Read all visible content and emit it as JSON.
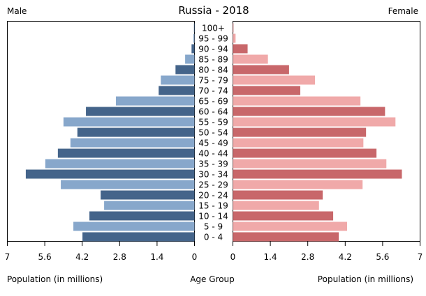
{
  "chart_data": {
    "type": "bar",
    "subtype": "population-pyramid",
    "title": "Russia - 2018",
    "left_label": "Male",
    "right_label": "Female",
    "xlabel_left": "Population (in millions)",
    "xlabel_center": "Age Group",
    "xlabel_right": "Population (in millions)",
    "xlim": [
      0,
      7
    ],
    "ticks": [
      "7",
      "5.6",
      "4.2",
      "2.8",
      "1.4",
      "0"
    ],
    "ticks_right": [
      "0",
      "1.4",
      "2.8",
      "4.2",
      "5.6",
      "7"
    ],
    "tick_values": [
      7,
      5.6,
      4.2,
      2.8,
      1.4,
      0
    ],
    "grid": false,
    "categories": [
      "0 - 4",
      "5 - 9",
      "10 - 14",
      "15 - 19",
      "20 - 24",
      "25 - 29",
      "30 - 34",
      "35 - 39",
      "40 - 44",
      "45 - 49",
      "50 - 54",
      "55 - 59",
      "60 - 64",
      "65 - 69",
      "70 - 74",
      "75 - 79",
      "80 - 84",
      "85 - 89",
      "90 - 94",
      "95 - 99",
      "100+"
    ],
    "series": [
      {
        "name": "Male",
        "values": [
          4.19,
          4.53,
          3.93,
          3.38,
          3.51,
          5.0,
          6.31,
          5.58,
          5.11,
          4.64,
          4.38,
          4.9,
          4.06,
          2.94,
          1.34,
          1.26,
          0.71,
          0.35,
          0.11,
          0.04,
          0.02
        ],
        "colors": [
          "#44648a",
          "#87a7cb"
        ]
      },
      {
        "name": "Female",
        "values": [
          3.96,
          4.27,
          3.75,
          3.22,
          3.36,
          4.85,
          6.32,
          5.74,
          5.37,
          4.88,
          4.98,
          6.08,
          5.69,
          4.77,
          2.52,
          3.07,
          2.1,
          1.31,
          0.55,
          0.1,
          0.02
        ],
        "colors": [
          "#c8676a",
          "#f0a9a9"
        ]
      }
    ]
  }
}
